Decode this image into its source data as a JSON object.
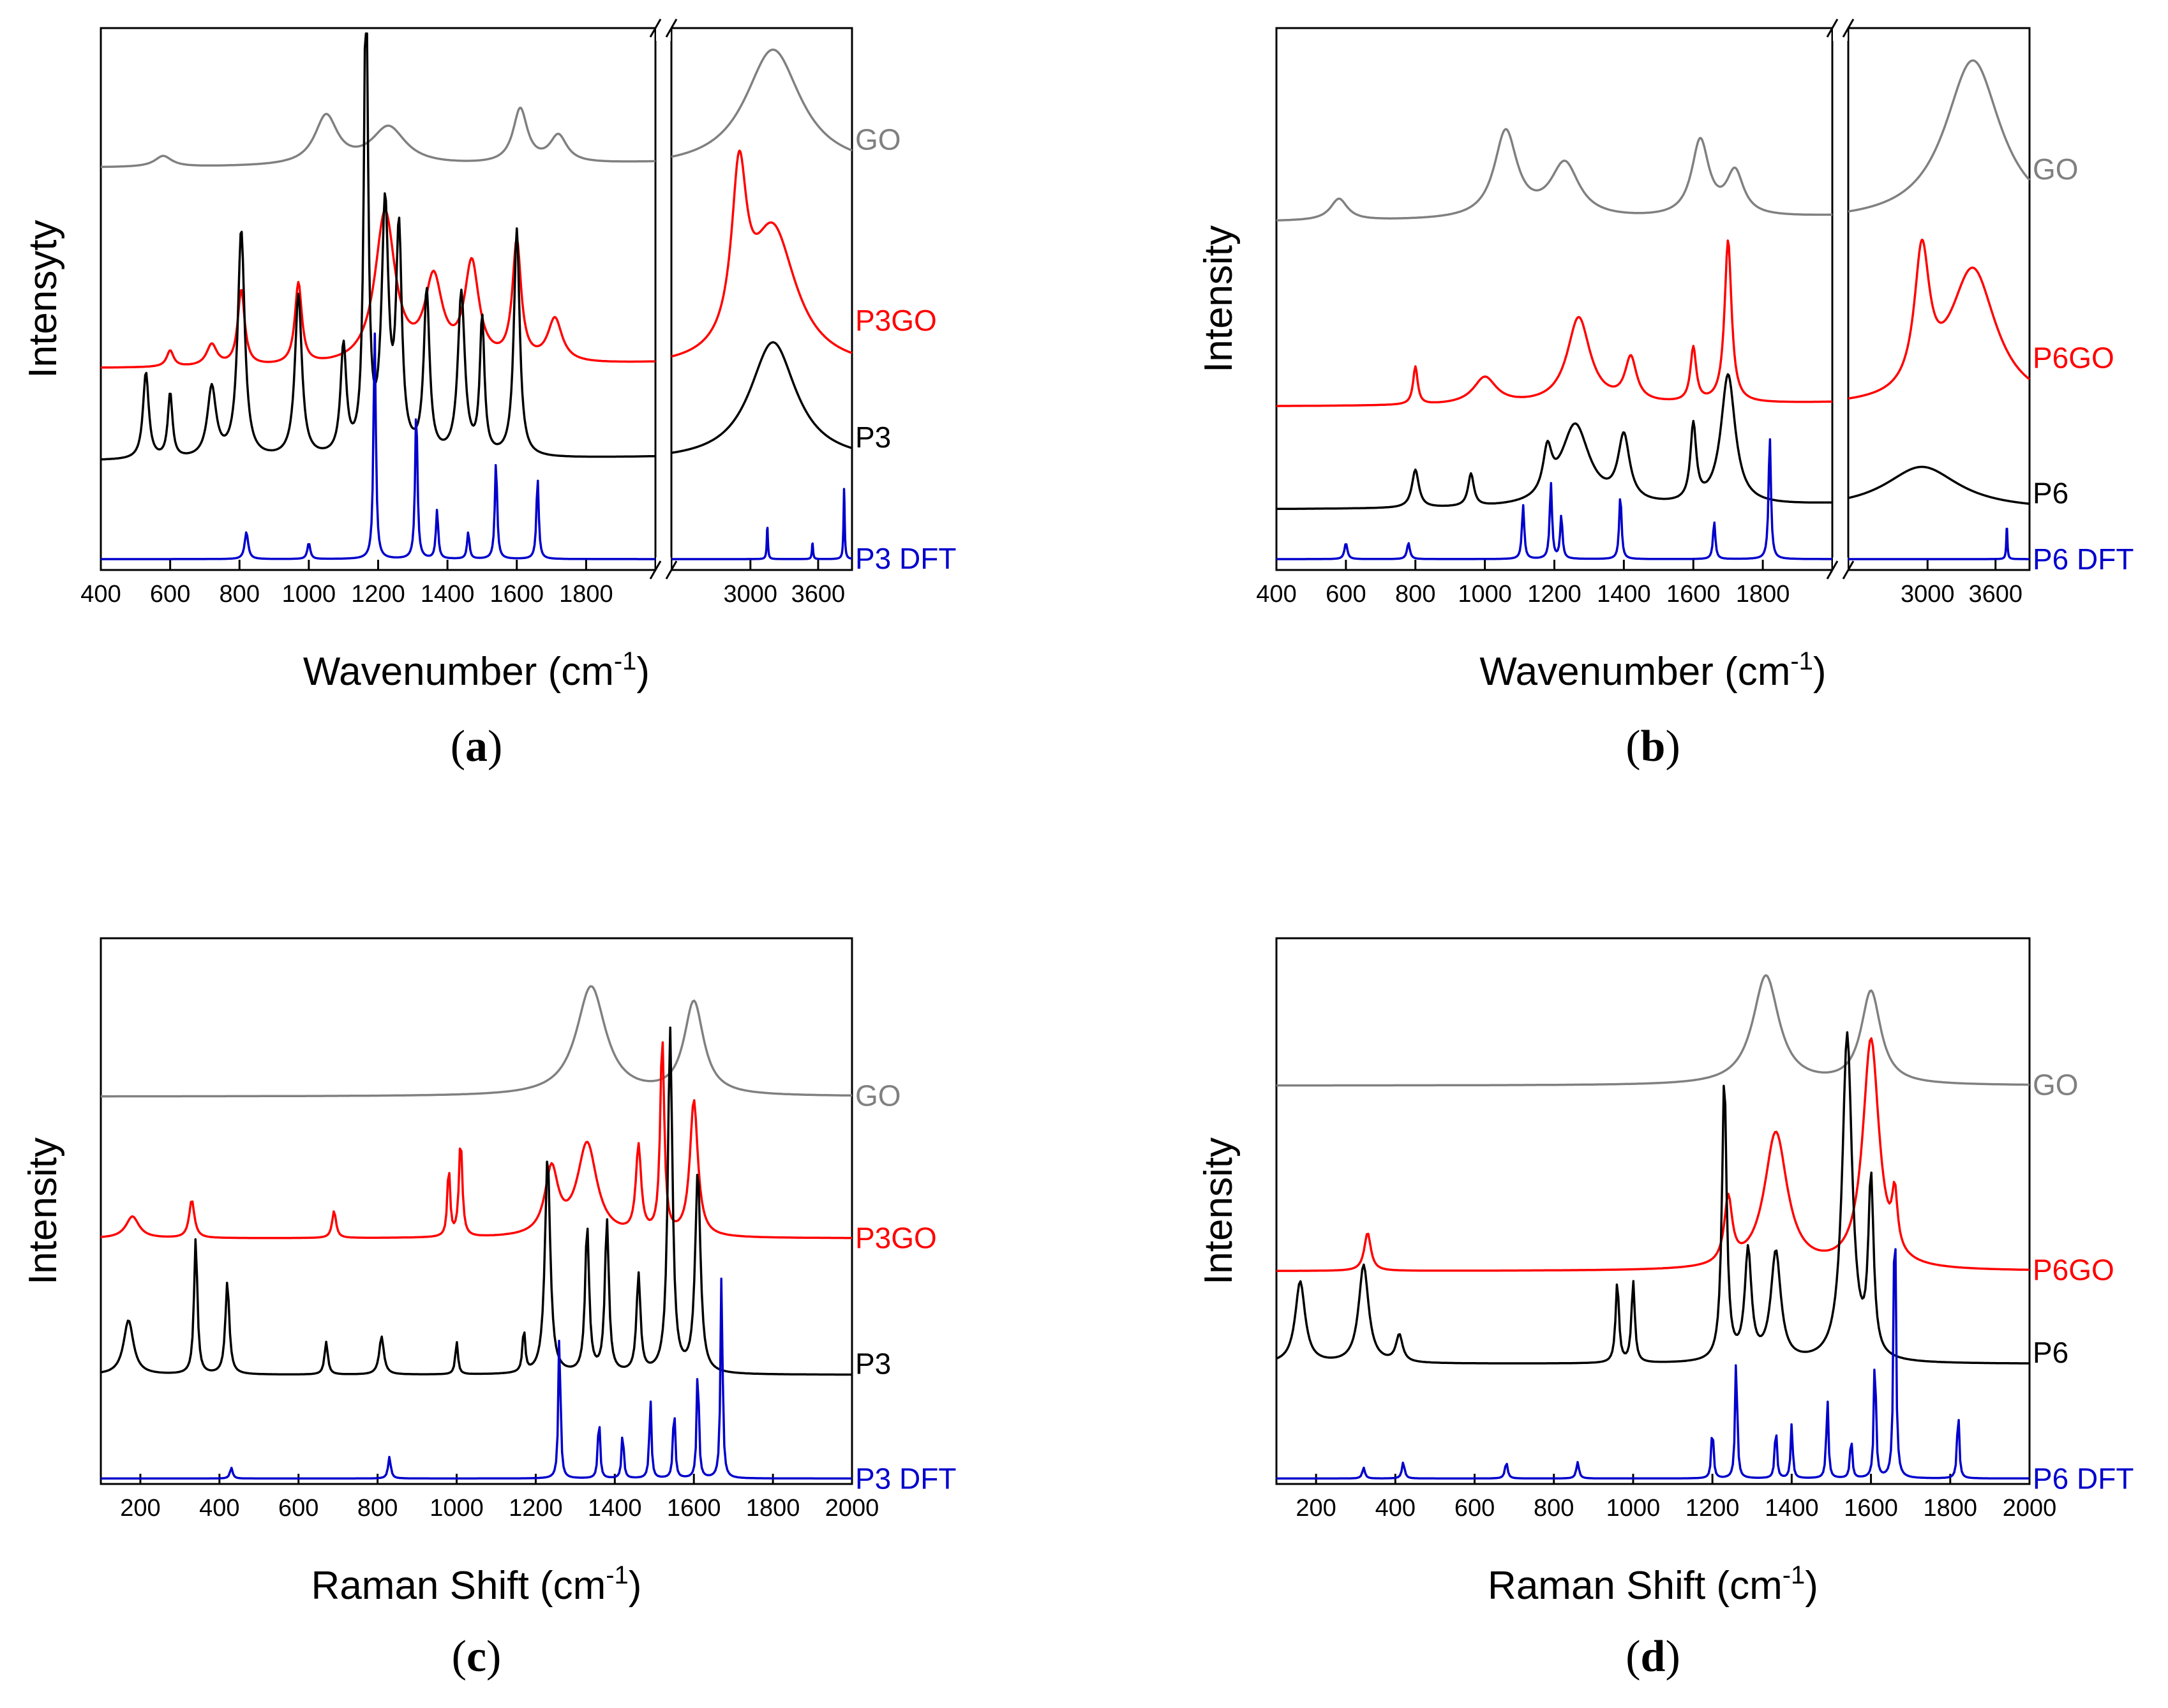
{
  "chart_data": [
    {
      "type": "line",
      "panel": "(a)",
      "panel_letter": "a",
      "xlabel": "Wavenumber (cm",
      "xlabel_sup": "-1",
      "xlabel_tail": ")",
      "ylabel": "Intensyty",
      "axis_break": true,
      "xlim_left": [
        400,
        2000
      ],
      "xlim_right": [
        2300,
        3900
      ],
      "ticks_left": [
        400,
        600,
        800,
        1000,
        1200,
        1400,
        1600,
        1800
      ],
      "ticks_right": [
        3000,
        3600
      ],
      "tick_labels_left": [
        "400",
        "600",
        "800",
        "1000",
        "1200",
        "1400",
        "1600",
        "1800"
      ],
      "tick_labels_right": [
        "3000",
        "3600"
      ],
      "series": [
        {
          "name": "GO",
          "color": "#808080",
          "baseline": 0.74,
          "peaks": [
            [
              580,
              0.02,
              30
            ],
            [
              1050,
              0.09,
              40
            ],
            [
              1230,
              0.07,
              60
            ],
            [
              1610,
              0.1,
              25
            ],
            [
              1720,
              0.05,
              30
            ],
            [
              3200,
              0.22,
              300
            ]
          ]
        },
        {
          "name": "P3GO",
          "color": "#ff0000",
          "baseline": 0.37,
          "peaks": [
            [
              600,
              0.03,
              12
            ],
            [
              720,
              0.04,
              18
            ],
            [
              805,
              0.14,
              12
            ],
            [
              970,
              0.15,
              12
            ],
            [
              1220,
              0.28,
              35
            ],
            [
              1360,
              0.15,
              30
            ],
            [
              1470,
              0.18,
              25
            ],
            [
              1600,
              0.22,
              15
            ],
            [
              1710,
              0.08,
              25
            ],
            [
              2900,
              0.3,
              80
            ],
            [
              3200,
              0.25,
              250
            ]
          ]
        },
        {
          "name": "P3",
          "color": "#000000",
          "baseline": 0.2,
          "peaks": [
            [
              530,
              0.16,
              10
            ],
            [
              600,
              0.12,
              8
            ],
            [
              720,
              0.13,
              15
            ],
            [
              805,
              0.42,
              12
            ],
            [
              970,
              0.3,
              12
            ],
            [
              1100,
              0.2,
              10
            ],
            [
              1165,
              0.9,
              7
            ],
            [
              1220,
              0.45,
              12
            ],
            [
              1260,
              0.4,
              10
            ],
            [
              1340,
              0.3,
              10
            ],
            [
              1440,
              0.3,
              12
            ],
            [
              1500,
              0.25,
              8
            ],
            [
              1600,
              0.42,
              10
            ],
            [
              3200,
              0.22,
              250
            ]
          ]
        },
        {
          "name": "P3 DFT",
          "color": "#0000cc",
          "baseline": 0.02,
          "peaks": [
            [
              820,
              0.05,
              6
            ],
            [
              1000,
              0.03,
              5
            ],
            [
              1190,
              0.42,
              4
            ],
            [
              1310,
              0.28,
              4
            ],
            [
              1370,
              0.09,
              4
            ],
            [
              1460,
              0.05,
              4
            ],
            [
              1540,
              0.18,
              4
            ],
            [
              1660,
              0.15,
              4
            ],
            [
              3150,
              0.06,
              6
            ],
            [
              3550,
              0.03,
              6
            ],
            [
              3830,
              0.13,
              6
            ]
          ]
        }
      ]
    },
    {
      "type": "line",
      "panel": "(b)",
      "panel_letter": "b",
      "xlabel": "Wavenumber (cm",
      "xlabel_sup": "-1",
      "xlabel_tail": ")",
      "ylabel": "Intensity",
      "axis_break": true,
      "xlim_left": [
        400,
        2000
      ],
      "xlim_right": [
        2300,
        3900
      ],
      "ticks_left": [
        400,
        600,
        800,
        1000,
        1200,
        1400,
        1600,
        1800
      ],
      "ticks_right": [
        3000,
        3600
      ],
      "tick_labels_left": [
        "400",
        "600",
        "800",
        "1000",
        "1200",
        "1400",
        "1600",
        "1800"
      ],
      "tick_labels_right": [
        "3000",
        "3600"
      ],
      "series": [
        {
          "name": "GO",
          "color": "#808080",
          "baseline": 0.64,
          "peaks": [
            [
              580,
              0.04,
              30
            ],
            [
              1060,
              0.16,
              40
            ],
            [
              1230,
              0.1,
              50
            ],
            [
              1620,
              0.14,
              30
            ],
            [
              1720,
              0.08,
              30
            ],
            [
              3400,
              0.3,
              300
            ]
          ]
        },
        {
          "name": "P6GO",
          "color": "#ff0000",
          "baseline": 0.3,
          "peaks": [
            [
              800,
              0.07,
              8
            ],
            [
              1000,
              0.05,
              40
            ],
            [
              1270,
              0.16,
              40
            ],
            [
              1420,
              0.08,
              20
            ],
            [
              1600,
              0.1,
              10
            ],
            [
              1700,
              0.3,
              12
            ],
            [
              2950,
              0.25,
              80
            ],
            [
              3400,
              0.25,
              250
            ]
          ]
        },
        {
          "name": "P6",
          "color": "#000000",
          "baseline": 0.11,
          "peaks": [
            [
              800,
              0.07,
              12
            ],
            [
              960,
              0.06,
              10
            ],
            [
              1180,
              0.08,
              15
            ],
            [
              1260,
              0.15,
              50
            ],
            [
              1400,
              0.12,
              20
            ],
            [
              1600,
              0.14,
              10
            ],
            [
              1700,
              0.24,
              25
            ],
            [
              2950,
              0.08,
              400
            ]
          ]
        },
        {
          "name": "P6 DFT",
          "color": "#0000cc",
          "baseline": 0.02,
          "peaks": [
            [
              600,
              0.03,
              5
            ],
            [
              780,
              0.03,
              5
            ],
            [
              1110,
              0.1,
              4
            ],
            [
              1190,
              0.14,
              4
            ],
            [
              1220,
              0.08,
              4
            ],
            [
              1390,
              0.12,
              4
            ],
            [
              1660,
              0.07,
              4
            ],
            [
              1820,
              0.23,
              4
            ],
            [
              3700,
              0.06,
              6
            ]
          ]
        }
      ]
    },
    {
      "type": "line",
      "panel": "(c)",
      "panel_letter": "c",
      "xlabel": "Raman Shift (cm",
      "xlabel_sup": "-1",
      "xlabel_tail": ")",
      "ylabel": "Intensity",
      "axis_break": false,
      "xlim": [
        100,
        2000
      ],
      "ticks": [
        200,
        400,
        600,
        800,
        1000,
        1200,
        1400,
        1600,
        1800,
        2000
      ],
      "tick_labels": [
        "200",
        "400",
        "600",
        "800",
        "1000",
        "1200",
        "1400",
        "1600",
        "1800",
        "2000"
      ],
      "series": [
        {
          "name": "GO",
          "color": "#808080",
          "baseline": 0.71,
          "peaks": [
            [
              1340,
              0.2,
              45
            ],
            [
              1600,
              0.17,
              30
            ]
          ]
        },
        {
          "name": "P3GO",
          "color": "#ff0000",
          "baseline": 0.45,
          "peaks": [
            [
              180,
              0.04,
              20
            ],
            [
              330,
              0.07,
              8
            ],
            [
              690,
              0.05,
              6
            ],
            [
              980,
              0.13,
              4
            ],
            [
              1010,
              0.18,
              5
            ],
            [
              1240,
              0.12,
              20
            ],
            [
              1330,
              0.17,
              30
            ],
            [
              1460,
              0.16,
              8
            ],
            [
              1520,
              0.36,
              6
            ],
            [
              1600,
              0.25,
              12
            ]
          ]
        },
        {
          "name": "P3",
          "color": "#000000",
          "baseline": 0.2,
          "peaks": [
            [
              170,
              0.1,
              15
            ],
            [
              340,
              0.25,
              5
            ],
            [
              420,
              0.17,
              6
            ],
            [
              670,
              0.06,
              5
            ],
            [
              810,
              0.07,
              7
            ],
            [
              1000,
              0.06,
              4
            ],
            [
              1170,
              0.08,
              4
            ],
            [
              1230,
              0.4,
              8
            ],
            [
              1330,
              0.27,
              6
            ],
            [
              1380,
              0.28,
              6
            ],
            [
              1460,
              0.18,
              6
            ],
            [
              1540,
              0.63,
              7
            ],
            [
              1610,
              0.37,
              8
            ]
          ]
        },
        {
          "name": "P3 DFT",
          "color": "#0000cc",
          "baseline": 0.01,
          "peaks": [
            [
              430,
              0.02,
              4
            ],
            [
              830,
              0.04,
              4
            ],
            [
              1260,
              0.28,
              3
            ],
            [
              1360,
              0.12,
              3
            ],
            [
              1420,
              0.09,
              3
            ],
            [
              1490,
              0.15,
              3
            ],
            [
              1550,
              0.14,
              3
            ],
            [
              1610,
              0.22,
              3
            ],
            [
              1670,
              0.38,
              3
            ]
          ]
        }
      ]
    },
    {
      "type": "line",
      "panel": "(d)",
      "panel_letter": "d",
      "xlabel": "Raman Shift (cm",
      "xlabel_sup": "-1",
      "xlabel_tail": ")",
      "ylabel": "Intensity",
      "axis_break": false,
      "xlim": [
        100,
        2000
      ],
      "ticks": [
        200,
        400,
        600,
        800,
        1000,
        1200,
        1400,
        1600,
        1800,
        2000
      ],
      "tick_labels": [
        "200",
        "400",
        "600",
        "800",
        "1000",
        "1200",
        "1400",
        "1600",
        "1800",
        "2000"
      ],
      "series": [
        {
          "name": "GO",
          "color": "#808080",
          "baseline": 0.73,
          "peaks": [
            [
              1335,
              0.2,
              40
            ],
            [
              1600,
              0.17,
              30
            ]
          ]
        },
        {
          "name": "P6GO",
          "color": "#ff0000",
          "baseline": 0.39,
          "peaks": [
            [
              330,
              0.07,
              10
            ],
            [
              1240,
              0.12,
              12
            ],
            [
              1360,
              0.25,
              35
            ],
            [
              1600,
              0.42,
              25
            ],
            [
              1660,
              0.1,
              8
            ]
          ]
        },
        {
          "name": "P6",
          "color": "#000000",
          "baseline": 0.22,
          "peaks": [
            [
              160,
              0.15,
              15
            ],
            [
              320,
              0.18,
              15
            ],
            [
              410,
              0.05,
              10
            ],
            [
              960,
              0.15,
              5
            ],
            [
              1000,
              0.15,
              5
            ],
            [
              1230,
              0.52,
              7
            ],
            [
              1290,
              0.2,
              10
            ],
            [
              1360,
              0.2,
              15
            ],
            [
              1540,
              0.6,
              15
            ],
            [
              1600,
              0.32,
              8
            ]
          ]
        },
        {
          "name": "P6 DFT",
          "color": "#0000cc",
          "baseline": 0.01,
          "peaks": [
            [
              320,
              0.02,
              4
            ],
            [
              420,
              0.03,
              4
            ],
            [
              680,
              0.03,
              4
            ],
            [
              860,
              0.03,
              4
            ],
            [
              1200,
              0.1,
              3
            ],
            [
              1260,
              0.23,
              3
            ],
            [
              1360,
              0.1,
              3
            ],
            [
              1400,
              0.1,
              3
            ],
            [
              1490,
              0.15,
              3
            ],
            [
              1550,
              0.08,
              3
            ],
            [
              1610,
              0.24,
              3
            ],
            [
              1660,
              0.57,
              3
            ],
            [
              1820,
              0.13,
              3
            ]
          ]
        }
      ]
    }
  ]
}
